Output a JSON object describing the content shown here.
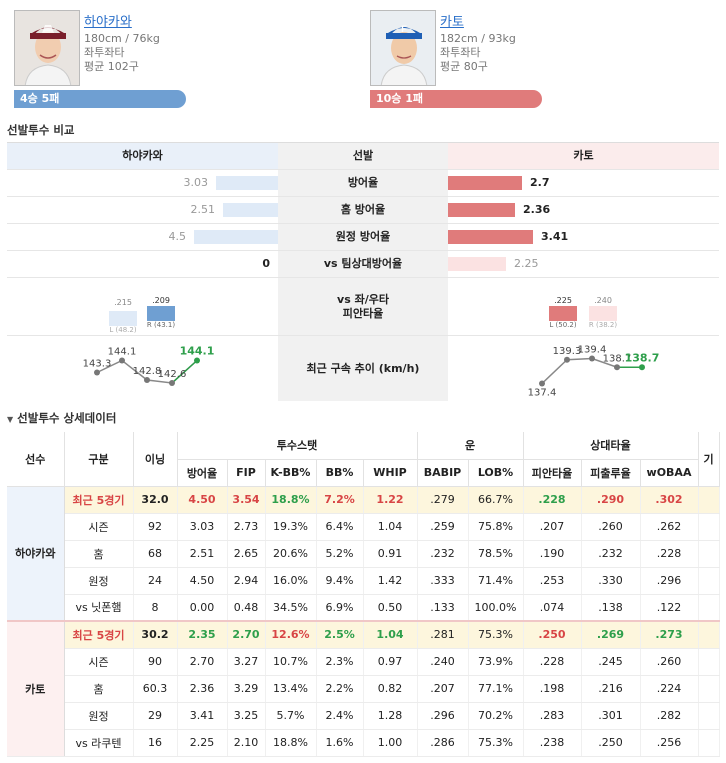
{
  "players": [
    {
      "name": "하야카와",
      "body": "180cm / 76kg",
      "hand": "좌투좌타",
      "avg_pitch": "평균 102구",
      "record": "4승 5패",
      "color": "#6f9fd2"
    },
    {
      "name": "카토",
      "body": "182cm / 93kg",
      "hand": "좌투좌타",
      "avg_pitch": "평균 80구",
      "record": "10승 1패",
      "color": "#e07b7b"
    }
  ],
  "compare": {
    "section_title": "선발투수 비교",
    "header_left": "하야카와",
    "header_mid": "선발",
    "header_right": "카토",
    "rows": [
      {
        "label": "방어율",
        "left": "3.03",
        "right": "2.7",
        "left_frac": 0.52,
        "right_frac": 0.46
      },
      {
        "label": "홈 방어율",
        "left": "2.51",
        "right": "2.36",
        "left_frac": 0.46,
        "right_frac": 0.42
      },
      {
        "label": "원정 방어율",
        "left": "4.5",
        "right": "3.41",
        "left_frac": 0.7,
        "right_frac": 0.53
      },
      {
        "label": "vs 팀상대방어율",
        "left": "0",
        "right": "2.25",
        "left_frac": 0.0,
        "right_frac": 0.36
      }
    ],
    "split": {
      "label": "vs 좌/우타\n피안타율",
      "left": {
        "l_val": ".215",
        "l_tag": "L (48.2)",
        "r_val": ".209",
        "r_tag": "R (43.1)"
      },
      "right": {
        "l_val": ".225",
        "l_tag": "L (50.2)",
        "r_val": ".240",
        "r_tag": "R (38.2)"
      }
    },
    "velo": {
      "label": "최근 구속 추이 (km/h)",
      "left": [
        "143.3",
        "144.1",
        "142.8",
        "142.6",
        "144.1"
      ],
      "right": [
        "137.4",
        "139.3",
        "139.4",
        "138.7",
        "138.7"
      ]
    }
  },
  "detail": {
    "section_title": "선발투수 상세데이터",
    "headers": {
      "player": "선수",
      "type": "구분",
      "ip": "이닝",
      "g1": "투수스탯",
      "g2": "운",
      "g3": "상대타율",
      "g4": "기"
    },
    "subheaders": [
      "방어율",
      "FIP",
      "K-BB%",
      "BB%",
      "WHIP",
      "BABIP",
      "LOB%",
      "피안타율",
      "피출루율",
      "wOBAA"
    ],
    "groups": [
      {
        "player": "하야카와",
        "rows": [
          {
            "type": "최근 5경기",
            "vals": [
              "32.0",
              "4.50",
              "3.54",
              "18.8%",
              "7.2%",
              "1.22",
              ".279",
              "66.7%",
              ".228",
              ".290",
              ".302"
            ]
          },
          {
            "type": "시즌",
            "vals": [
              "92",
              "3.03",
              "2.73",
              "19.3%",
              "6.4%",
              "1.04",
              ".259",
              "75.8%",
              ".207",
              ".260",
              ".262"
            ]
          },
          {
            "type": "홈",
            "vals": [
              "68",
              "2.51",
              "2.65",
              "20.6%",
              "5.2%",
              "0.91",
              ".232",
              "78.5%",
              ".190",
              ".232",
              ".228"
            ]
          },
          {
            "type": "원정",
            "vals": [
              "24",
              "4.50",
              "2.94",
              "16.0%",
              "9.4%",
              "1.42",
              ".333",
              "71.4%",
              ".253",
              ".330",
              ".296"
            ]
          },
          {
            "type": "vs 닛폰햄",
            "vals": [
              "8",
              "0.00",
              "0.48",
              "34.5%",
              "6.9%",
              "0.50",
              ".133",
              "100.0%",
              ".074",
              ".138",
              ".122"
            ]
          }
        ]
      },
      {
        "player": "카토",
        "rows": [
          {
            "type": "최근 5경기",
            "vals": [
              "30.2",
              "2.35",
              "2.70",
              "12.6%",
              "2.5%",
              "1.04",
              ".281",
              "75.3%",
              ".250",
              ".269",
              ".273"
            ]
          },
          {
            "type": "시즌",
            "vals": [
              "90",
              "2.70",
              "3.27",
              "10.7%",
              "2.3%",
              "0.97",
              ".240",
              "73.9%",
              ".228",
              ".245",
              ".260"
            ]
          },
          {
            "type": "홈",
            "vals": [
              "60.3",
              "2.36",
              "3.29",
              "13.4%",
              "2.2%",
              "0.82",
              ".207",
              "77.1%",
              ".198",
              ".216",
              ".224"
            ]
          },
          {
            "type": "원정",
            "vals": [
              "29",
              "3.41",
              "3.25",
              "5.7%",
              "2.4%",
              "1.28",
              ".296",
              "70.2%",
              ".283",
              ".301",
              ".282"
            ]
          },
          {
            "type": "vs 라쿠텐",
            "vals": [
              "16",
              "2.25",
              "2.10",
              "18.8%",
              "1.6%",
              "1.00",
              ".286",
              "75.3%",
              ".238",
              ".250",
              ".256"
            ]
          }
        ]
      }
    ]
  },
  "colors": {
    "left_accent": "#6f9fd2",
    "right_accent": "#e07b7b",
    "velo_up": "#2e9f4b",
    "highlight_row": "#fdf6dd"
  }
}
